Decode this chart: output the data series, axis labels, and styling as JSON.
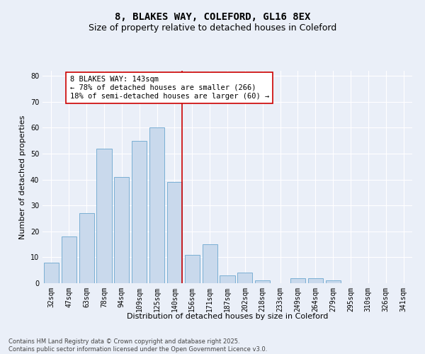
{
  "title": "8, BLAKES WAY, COLEFORD, GL16 8EX",
  "subtitle": "Size of property relative to detached houses in Coleford",
  "xlabel": "Distribution of detached houses by size in Coleford",
  "ylabel": "Number of detached properties",
  "bar_color": "#c9d9ec",
  "bar_edge_color": "#7aafd4",
  "categories": [
    "32sqm",
    "47sqm",
    "63sqm",
    "78sqm",
    "94sqm",
    "109sqm",
    "125sqm",
    "140sqm",
    "156sqm",
    "171sqm",
    "187sqm",
    "202sqm",
    "218sqm",
    "233sqm",
    "249sqm",
    "264sqm",
    "279sqm",
    "295sqm",
    "310sqm",
    "326sqm",
    "341sqm"
  ],
  "values": [
    8,
    18,
    27,
    52,
    41,
    55,
    60,
    39,
    11,
    15,
    3,
    4,
    1,
    0,
    2,
    2,
    1,
    0,
    0,
    0,
    0
  ],
  "vline_index": 7,
  "vline_color": "#cc0000",
  "annotation_text": "8 BLAKES WAY: 143sqm\n← 78% of detached houses are smaller (266)\n18% of semi-detached houses are larger (60) →",
  "annotation_box_facecolor": "#ffffff",
  "annotation_box_edgecolor": "#cc0000",
  "ylim": [
    0,
    82
  ],
  "yticks": [
    0,
    10,
    20,
    30,
    40,
    50,
    60,
    70,
    80
  ],
  "background_color": "#eaeff8",
  "grid_color": "#ffffff",
  "footer_line1": "Contains HM Land Registry data © Crown copyright and database right 2025.",
  "footer_line2": "Contains public sector information licensed under the Open Government Licence v3.0.",
  "title_fontsize": 10,
  "subtitle_fontsize": 9,
  "axis_label_fontsize": 8,
  "tick_fontsize": 7,
  "annotation_fontsize": 7.5,
  "footer_fontsize": 6
}
